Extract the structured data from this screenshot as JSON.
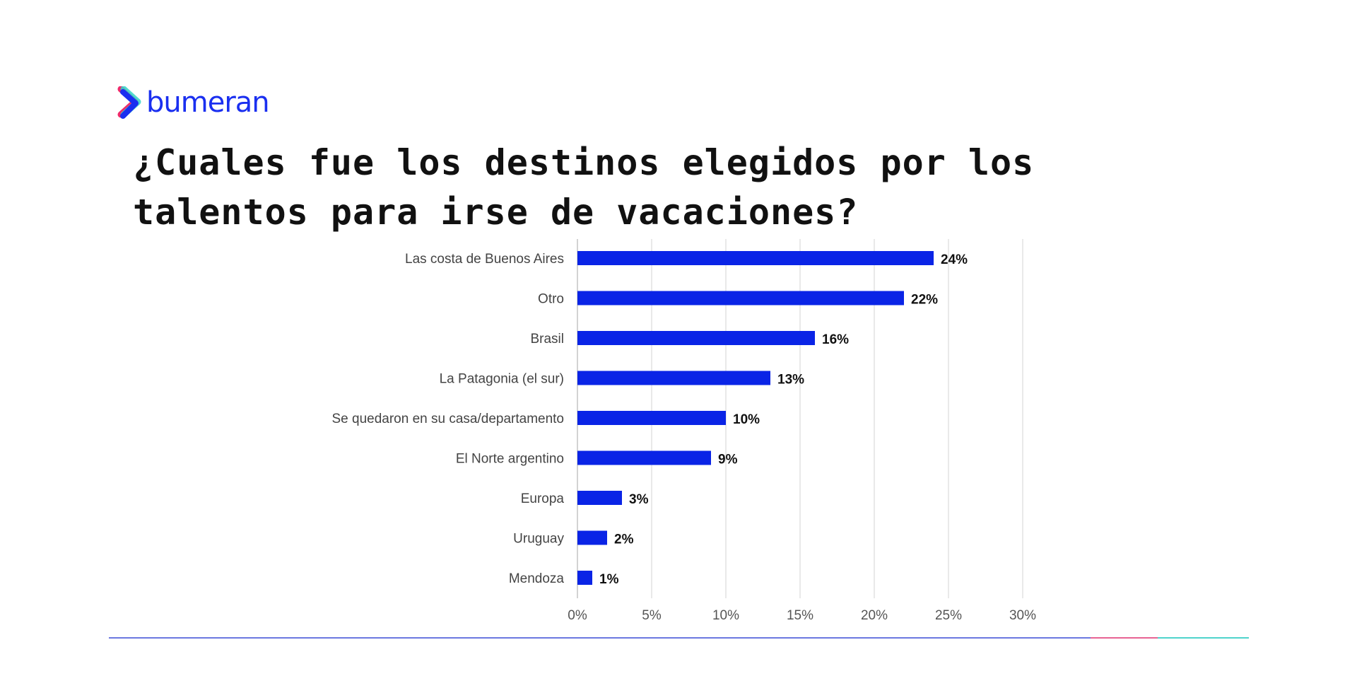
{
  "brand": {
    "name": "bumeran",
    "colors": {
      "primary": "#1a2ff0",
      "pink": "#ee2a6b",
      "teal": "#34d4c8"
    }
  },
  "title": "¿Cuales fue los destinos elegidos por los talentos para irse de vacaciones?",
  "chart_data": {
    "type": "bar",
    "orientation": "horizontal",
    "categories": [
      "Las costa de Buenos Aires",
      "Otro",
      "Brasil",
      "La Patagonia (el sur)",
      "Se quedaron en su casa/departamento",
      "El Norte argentino",
      "Europa",
      "Uruguay",
      "Mendoza"
    ],
    "values": [
      24,
      22,
      16,
      13,
      10,
      9,
      3,
      2,
      1
    ],
    "data_labels": [
      "24%",
      "22%",
      "16%",
      "13%",
      "10%",
      "9%",
      "3%",
      "2%",
      "1%"
    ],
    "xlim": [
      0,
      30
    ],
    "xticks": [
      "0%",
      "5%",
      "10%",
      "15%",
      "20%",
      "25%",
      "30%"
    ],
    "grid": true,
    "bar_color": "#0a24e6"
  }
}
